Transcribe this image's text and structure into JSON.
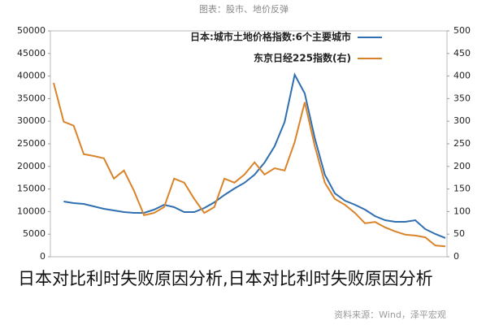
{
  "chart_data": {
    "type": "line",
    "title": "图表：股市、地价反弹",
    "source": "资料来源：Wind，泽平宏观",
    "caption": "日本对比利时失败原因分析,日本对比利时失败原因分析",
    "categories": [
      null,
      null,
      null,
      null,
      null,
      null,
      null,
      null,
      null,
      null,
      null,
      null,
      null,
      null,
      null,
      null,
      null,
      null,
      null,
      null,
      null,
      null,
      null,
      null,
      null,
      null,
      null,
      null,
      null,
      null,
      null,
      null,
      null,
      null,
      null,
      null,
      null,
      null,
      null,
      null
    ],
    "series": [
      {
        "name": "日本:城市土地价格指数:6个主要城市",
        "color": "#2f6fb0",
        "values": [
          null,
          12230,
          11870,
          11690,
          11150,
          10610,
          10250,
          9890,
          9710,
          9710,
          10430,
          11510,
          10970,
          9890,
          9890,
          10790,
          12050,
          13670,
          15110,
          16370,
          18170,
          20860,
          24460,
          29860,
          40290,
          36150,
          26260,
          18170,
          14030,
          12410,
          11510,
          10430,
          8990,
          8090,
          7730,
          7730,
          8090,
          6120,
          5040,
          4140
        ]
      },
      {
        "name": "东京日经225指数(右)",
        "color": "#d9842a",
        "axis": "y2",
        "values": [
          385,
          299,
          290,
          227,
          223,
          218,
          173,
          191,
          146,
          92,
          97,
          110,
          173,
          164,
          128,
          97,
          110,
          173,
          164,
          182,
          209,
          182,
          196,
          191,
          254,
          342,
          245,
          164,
          128,
          115,
          97,
          74,
          77,
          65,
          56,
          49,
          47,
          43,
          25,
          23
        ]
      }
    ],
    "ylim": [
      0,
      50000
    ],
    "yticks": [
      0,
      5000,
      10000,
      15000,
      20000,
      25000,
      30000,
      35000,
      40000,
      45000,
      50000
    ],
    "y2lim": [
      0,
      500
    ],
    "y2ticks": [
      0,
      50,
      100,
      150,
      200,
      250,
      300,
      350,
      400,
      450,
      500
    ],
    "legend": "top-right"
  }
}
